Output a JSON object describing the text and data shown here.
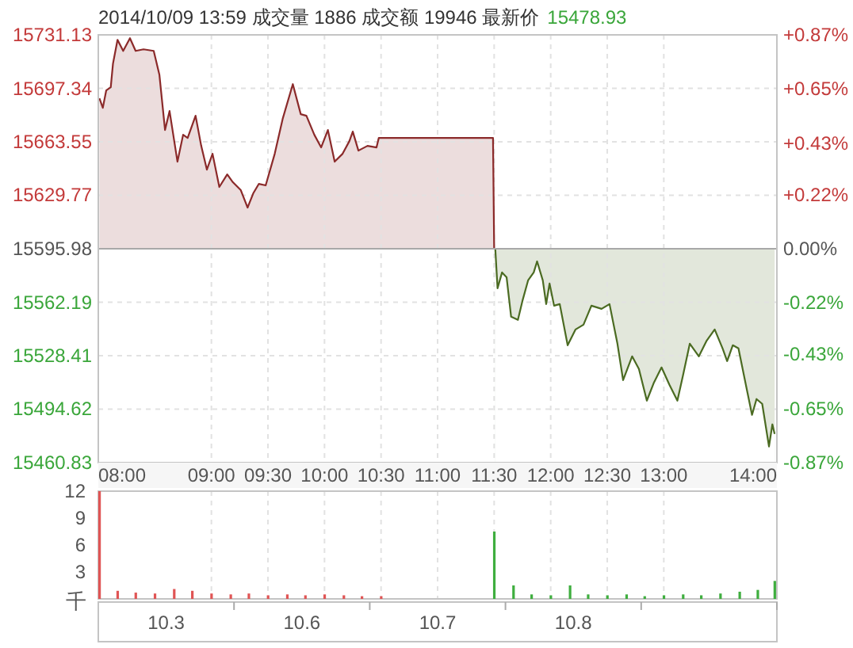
{
  "chart_data": [
    {
      "type": "area",
      "title": "2014/10/09 13:59  成交量 1886  成交额 19946  最新价",
      "subtitle": "15478.93",
      "xlim": [
        8,
        14
      ],
      "ylim": [
        15460.83,
        15731.13
      ],
      "y2lim": [
        -0.87,
        0.87
      ],
      "grid": true,
      "xticks": [
        {
          "value": 8,
          "label": "08:00"
        },
        {
          "value": 9,
          "label": "09:00"
        },
        {
          "value": 9.5,
          "label": "09:30"
        },
        {
          "value": 10,
          "label": "10:00"
        },
        {
          "value": 10.5,
          "label": "10:30"
        },
        {
          "value": 11,
          "label": "11:00"
        },
        {
          "value": 11.5,
          "label": "11:30"
        },
        {
          "value": 12,
          "label": "12:00"
        },
        {
          "value": 12.5,
          "label": "12:30"
        },
        {
          "value": 13,
          "label": "13:00"
        },
        {
          "value": 14,
          "label": "14:00"
        }
      ],
      "yticks": [
        15460.83,
        15494.62,
        15528.41,
        15562.19,
        15595.98,
        15629.77,
        15663.55,
        15697.34,
        15731.13
      ],
      "y2ticks": [
        {
          "value": -0.87,
          "label": "-0.87%"
        },
        {
          "value": -0.65,
          "label": "-0.65%"
        },
        {
          "value": -0.43,
          "label": "-0.43%"
        },
        {
          "value": -0.22,
          "label": "-0.22%"
        },
        {
          "value": 0,
          "label": "0.00%"
        },
        {
          "value": 0.22,
          "label": "+0.22%"
        },
        {
          "value": 0.43,
          "label": "+0.43%"
        },
        {
          "value": 0.65,
          "label": "+0.65%"
        },
        {
          "value": 0.87,
          "label": "+0.87%"
        }
      ],
      "ref_lines": [
        {
          "axis": "y",
          "value": 15595.98,
          "color": "#a8a8a8"
        }
      ],
      "series": [
        {
          "color": "#8b2a2a",
          "x": [
            8.01,
            8.04,
            8.07,
            8.11,
            8.13,
            8.17,
            8.22,
            8.28,
            8.33,
            8.4,
            8.49,
            8.54,
            8.59,
            8.63,
            8.7,
            8.75,
            8.79,
            8.86,
            8.91,
            8.96,
            9.01,
            9.07,
            9.14,
            9.19,
            9.26,
            9.32,
            9.37,
            9.42,
            9.48,
            9.56,
            9.63,
            9.72,
            9.79,
            9.84,
            9.91,
            9.97,
            10.03,
            10.09,
            10.16,
            10.22,
            10.25,
            10.3,
            10.38,
            10.46,
            10.48,
            11.49,
            11.5
          ],
          "values": [
            15691,
            15685,
            15696,
            15698,
            15713,
            15728,
            15721,
            15729,
            15721,
            15722,
            15721,
            15706,
            15671,
            15683,
            15651,
            15668,
            15666,
            15680,
            15661,
            15646,
            15656,
            15635,
            15643,
            15638,
            15633,
            15622,
            15631,
            15637,
            15636,
            15656,
            15678,
            15700,
            15681,
            15680,
            15668,
            15660,
            15671,
            15651,
            15656,
            15664,
            15670,
            15658,
            15661,
            15660,
            15666,
            15666,
            15596
          ]
        },
        {
          "color": "#4b6b22",
          "x": [
            11.51,
            11.53,
            11.57,
            11.61,
            11.65,
            11.71,
            11.75,
            11.8,
            11.85,
            11.88,
            11.93,
            11.96,
            11.99,
            12.03,
            12.08,
            12.15,
            12.22,
            12.29,
            12.36,
            12.45,
            12.52,
            12.59,
            12.64,
            12.72,
            12.78,
            12.85,
            12.91,
            12.98,
            13.05,
            13.12,
            13.17,
            13.23,
            13.31,
            13.38,
            13.45,
            13.52,
            13.56,
            13.61,
            13.66,
            13.74,
            13.78,
            13.82,
            13.87,
            13.93,
            13.96,
            13.98
          ],
          "values": [
            15596,
            15571,
            15581,
            15578,
            15553,
            15551,
            15563,
            15576,
            15581,
            15588,
            15576,
            15561,
            15574,
            15560,
            15561,
            15535,
            15545,
            15548,
            15560,
            15558,
            15561,
            15536,
            15513,
            15528,
            15520,
            15500,
            15511,
            15521,
            15510,
            15500,
            15516,
            15536,
            15528,
            15538,
            15545,
            15533,
            15525,
            15535,
            15533,
            15505,
            15491,
            15501,
            15498,
            15471,
            15485,
            15478.93
          ]
        }
      ]
    },
    {
      "type": "bar",
      "ylabel": "千",
      "xlim": [
        8,
        14
      ],
      "ylim": [
        0,
        12
      ],
      "yticks": [
        3,
        6,
        9,
        12
      ],
      "grid": "x",
      "tick_labels": "y",
      "xticks": [
        {
          "value": 9,
          "label": null
        },
        {
          "value": 9.5,
          "label": null
        },
        {
          "value": 10,
          "label": null
        },
        {
          "value": 10.5,
          "label": null
        },
        {
          "value": 11,
          "label": null
        },
        {
          "value": 11.5,
          "label": null
        },
        {
          "value": 12,
          "label": null
        },
        {
          "value": 12.5,
          "label": null
        },
        {
          "value": 13,
          "label": null
        }
      ],
      "series": [
        {
          "color": "#e05555",
          "x": [
            8,
            8.17,
            8.33,
            8.5,
            8.67,
            8.83,
            9,
            9.17,
            9.33,
            9.5,
            9.67,
            9.83,
            10,
            10.17,
            10.33,
            10.5
          ],
          "values": [
            12,
            0.9,
            0.7,
            0.6,
            1.1,
            0.9,
            0.6,
            0.5,
            0.6,
            0.4,
            0.5,
            0.4,
            0.5,
            0.4,
            0.3,
            0.3
          ]
        },
        {
          "color": "#3fae3f",
          "x": [
            11.5,
            11.67,
            11.83,
            12,
            12.17,
            12.33,
            12.5,
            12.67,
            12.83,
            13,
            13.17,
            13.33,
            13.5,
            13.67,
            13.83,
            13.98
          ],
          "values": [
            7.5,
            1.5,
            0.5,
            0.4,
            1.5,
            0.5,
            0.4,
            0.5,
            0.3,
            0.4,
            0.5,
            0.4,
            0.6,
            0.8,
            1.0,
            2.0
          ]
        }
      ]
    },
    {
      "type": "other",
      "categories": [
        "10.3",
        "10.6",
        "10.7",
        "10.8",
        null
      ]
    }
  ]
}
